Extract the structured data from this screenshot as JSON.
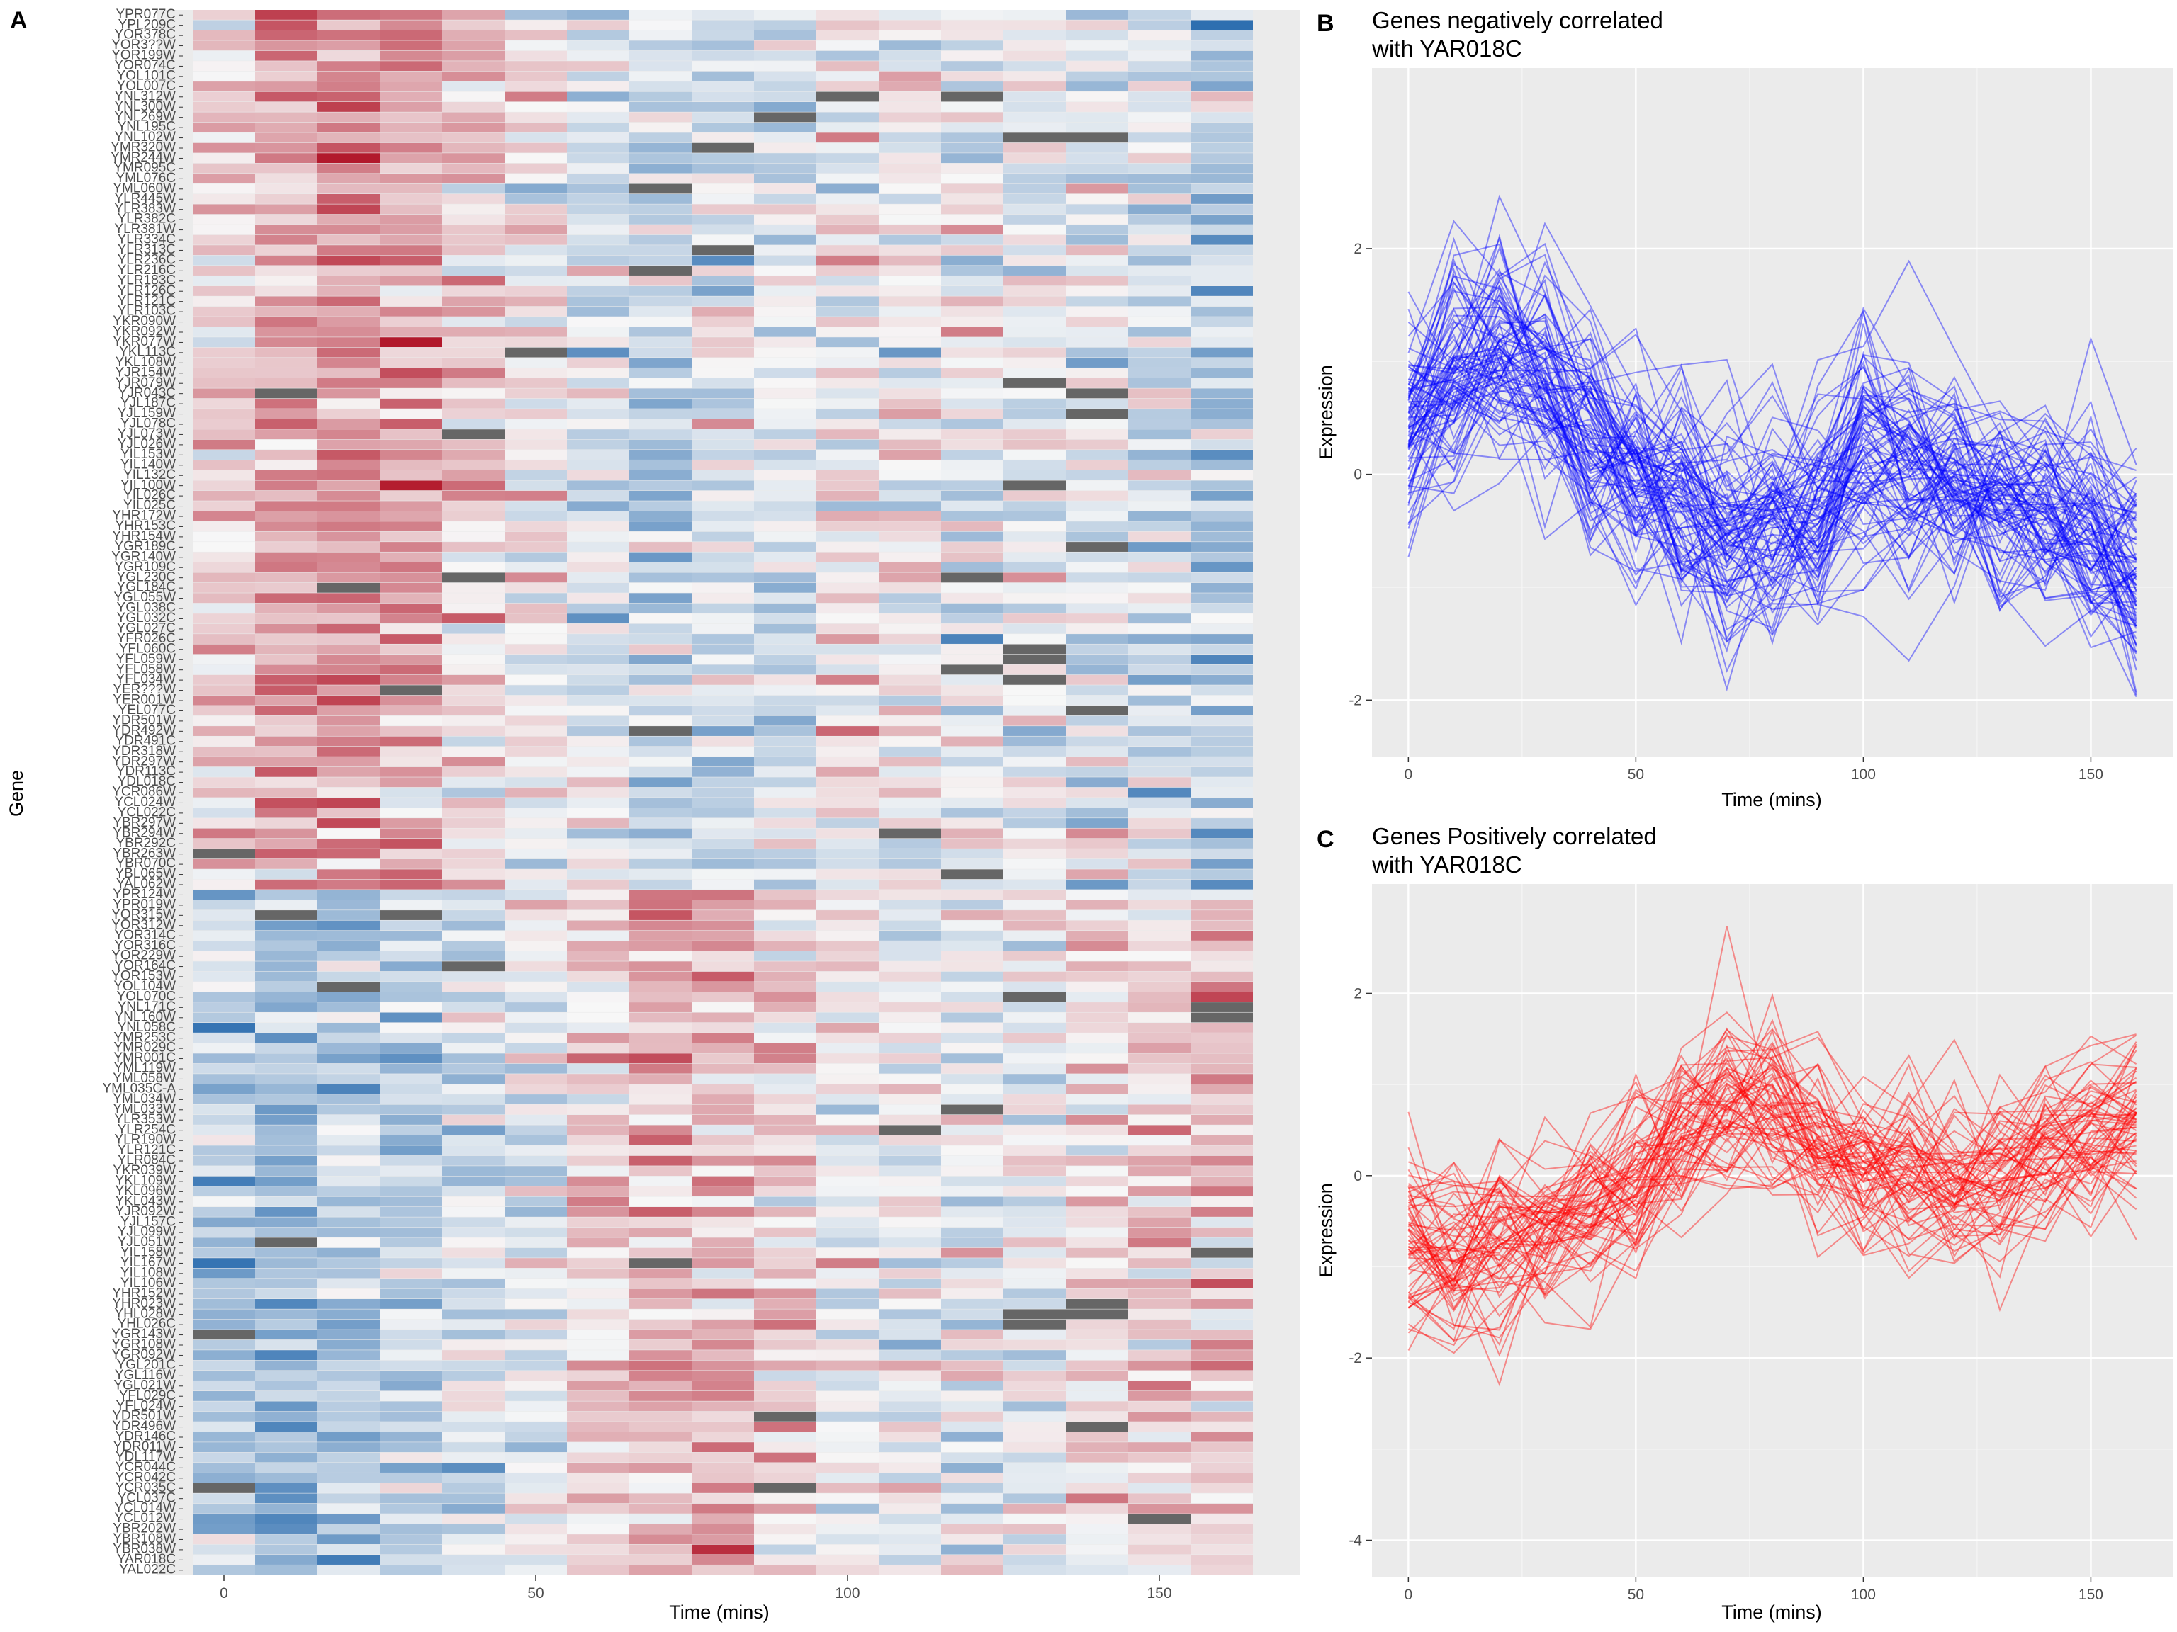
{
  "panels": {
    "A": {
      "letter": "A",
      "xlabel": "Time (mins)",
      "ylabel": "Gene"
    },
    "B": {
      "letter": "B",
      "title_line1": "Genes negatively correlated",
      "title_line2": "with YAR018C",
      "xlabel": "Time (mins)",
      "ylabel": "Expression",
      "color": "#0000ff"
    },
    "C": {
      "letter": "C",
      "title_line1": "Genes Positively correlated",
      "title_line2": "with YAR018C",
      "xlabel": "Time (mins)",
      "ylabel": "Expression",
      "color": "#ff0000"
    }
  },
  "chart_data": [
    {
      "type": "heatmap",
      "xlabel": "Time (mins)",
      "ylabel": "Gene",
      "x": [
        0,
        10,
        20,
        30,
        40,
        50,
        60,
        70,
        80,
        90,
        100,
        110,
        120,
        130,
        140,
        150,
        160
      ],
      "x_ticks": [
        0,
        50,
        100,
        150
      ],
      "color_scale": {
        "low": "#2166ac",
        "mid": "#f7f7f7",
        "high": "#b2182b",
        "na": "#666666"
      },
      "genes_negatively_correlated": [
        "YPR077C",
        "YPL209C",
        "YOR378C",
        "YOR3??W",
        "YOR199W",
        "YOR074C",
        "YOL101C",
        "YOL007C",
        "YNL312W",
        "YNL300W",
        "YNL269W",
        "YNL195C",
        "YNL102W",
        "YMR320W",
        "YMR244W",
        "YMR095C",
        "YML076C",
        "YML060W",
        "YLR445W",
        "YLR383W",
        "YLR382C",
        "YLR381W",
        "YLR334C",
        "YLR313C",
        "YLR236C",
        "YLR216C",
        "YLR183C",
        "YLR126C",
        "YLR121C",
        "YLR103C",
        "YKR090W",
        "YKR092W",
        "YKR077W",
        "YKL113C",
        "YKL108W",
        "YJR154W",
        "YJR079W",
        "YJR043C",
        "YJL187C",
        "YJL159W",
        "YJL078C",
        "YJL073W",
        "YJL026W",
        "YIL153W",
        "YIL140W",
        "YIL132C",
        "YIL100W",
        "YIL026C",
        "YIL025C",
        "YHR172W",
        "YHR153C",
        "YHR154W",
        "YGR189C",
        "YGR140W",
        "YGR109C",
        "YGL230C",
        "YGL184C",
        "YGL055W",
        "YGL038C",
        "YGL032C",
        "YGL027C",
        "YFR026C",
        "YFL060C",
        "YFL059W",
        "YFL058W",
        "YFL034W",
        "YER???W",
        "YER001W",
        "YEL077C",
        "YDR501W",
        "YDR492W",
        "YDR491C",
        "YDR318W",
        "YDR297W",
        "YDR113C",
        "YDL018C",
        "YCR086W",
        "YCL024W",
        "YCL022C",
        "YBR297W",
        "YBR294W",
        "YBR292C",
        "YBR263W",
        "YBR070C",
        "YBL065W",
        "YAL062W"
      ],
      "genes_positively_correlated": [
        "YPR124W",
        "YPR019W",
        "YOR315W",
        "YOR312W",
        "YOR314C",
        "YOR316C",
        "YOR229W",
        "YOR164C",
        "YOR153W",
        "YOL104W",
        "YOL070C",
        "YNL171C",
        "YNL160W",
        "YNL058C",
        "YMR253C",
        "YMR029C",
        "YMR001C",
        "YML119W",
        "YML058W",
        "YML035C-A",
        "YML034W",
        "YML033W",
        "YLR353W",
        "YLR254C",
        "YLR190W",
        "YLR121C",
        "YLR084C",
        "YKR039W",
        "YKL109W",
        "YKL096W",
        "YKL043W",
        "YJR092W",
        "YJL157C",
        "YJL099W",
        "YJL051W",
        "YIL158W",
        "YIL167W",
        "YIL108W",
        "YIL106W",
        "YHR152W",
        "YHR023W",
        "YHL028W",
        "YHL026C",
        "YGR143W",
        "YGR108W",
        "YGR092W",
        "YGL201C",
        "YGL116W",
        "YGL021W",
        "YFL029C",
        "YFL024W",
        "YDR501W",
        "YDR496W",
        "YDR146C",
        "YDR011W",
        "YDL117W",
        "YCR044C",
        "YCR042C",
        "YCR035C",
        "YCL037C",
        "YCL014W",
        "YCL012W",
        "YBR202W",
        "YBR108W",
        "YBR038W",
        "YAR018C",
        "YAL022C"
      ]
    },
    {
      "type": "line",
      "title": "Genes negatively correlated with YAR018C",
      "xlabel": "Time (mins)",
      "ylabel": "Expression",
      "x": [
        0,
        10,
        20,
        30,
        40,
        50,
        60,
        70,
        80,
        90,
        100,
        110,
        120,
        130,
        140,
        150,
        160
      ],
      "xlim": [
        -8,
        168
      ],
      "ylim": [
        -2.5,
        3.6
      ],
      "x_ticks": [
        0,
        50,
        100,
        150
      ],
      "y_ticks": [
        -2,
        0,
        2
      ],
      "series_mean": [
        0.4,
        0.9,
        1.15,
        0.9,
        0.45,
        0.05,
        -0.2,
        -0.55,
        -0.45,
        -0.35,
        0.15,
        0.05,
        -0.1,
        -0.15,
        -0.3,
        -0.5,
        -0.8
      ],
      "series_count": 86,
      "color": "#0000ff"
    },
    {
      "type": "line",
      "title": "Genes Positively correlated with YAR018C",
      "xlabel": "Time (mins)",
      "ylabel": "Expression",
      "x": [
        0,
        10,
        20,
        30,
        40,
        50,
        60,
        70,
        80,
        90,
        100,
        110,
        120,
        130,
        140,
        150,
        160
      ],
      "xlim": [
        -8,
        168
      ],
      "ylim": [
        -4.4,
        3.2
      ],
      "x_ticks": [
        0,
        50,
        100,
        150
      ],
      "y_ticks": [
        -4,
        -2,
        0,
        2
      ],
      "series_mean": [
        -0.8,
        -0.95,
        -0.8,
        -0.65,
        -0.35,
        -0.05,
        0.35,
        0.75,
        0.75,
        0.35,
        0.05,
        -0.05,
        -0.15,
        -0.05,
        0.3,
        0.45,
        0.6
      ],
      "series_count": 67,
      "color": "#ff0000"
    }
  ]
}
